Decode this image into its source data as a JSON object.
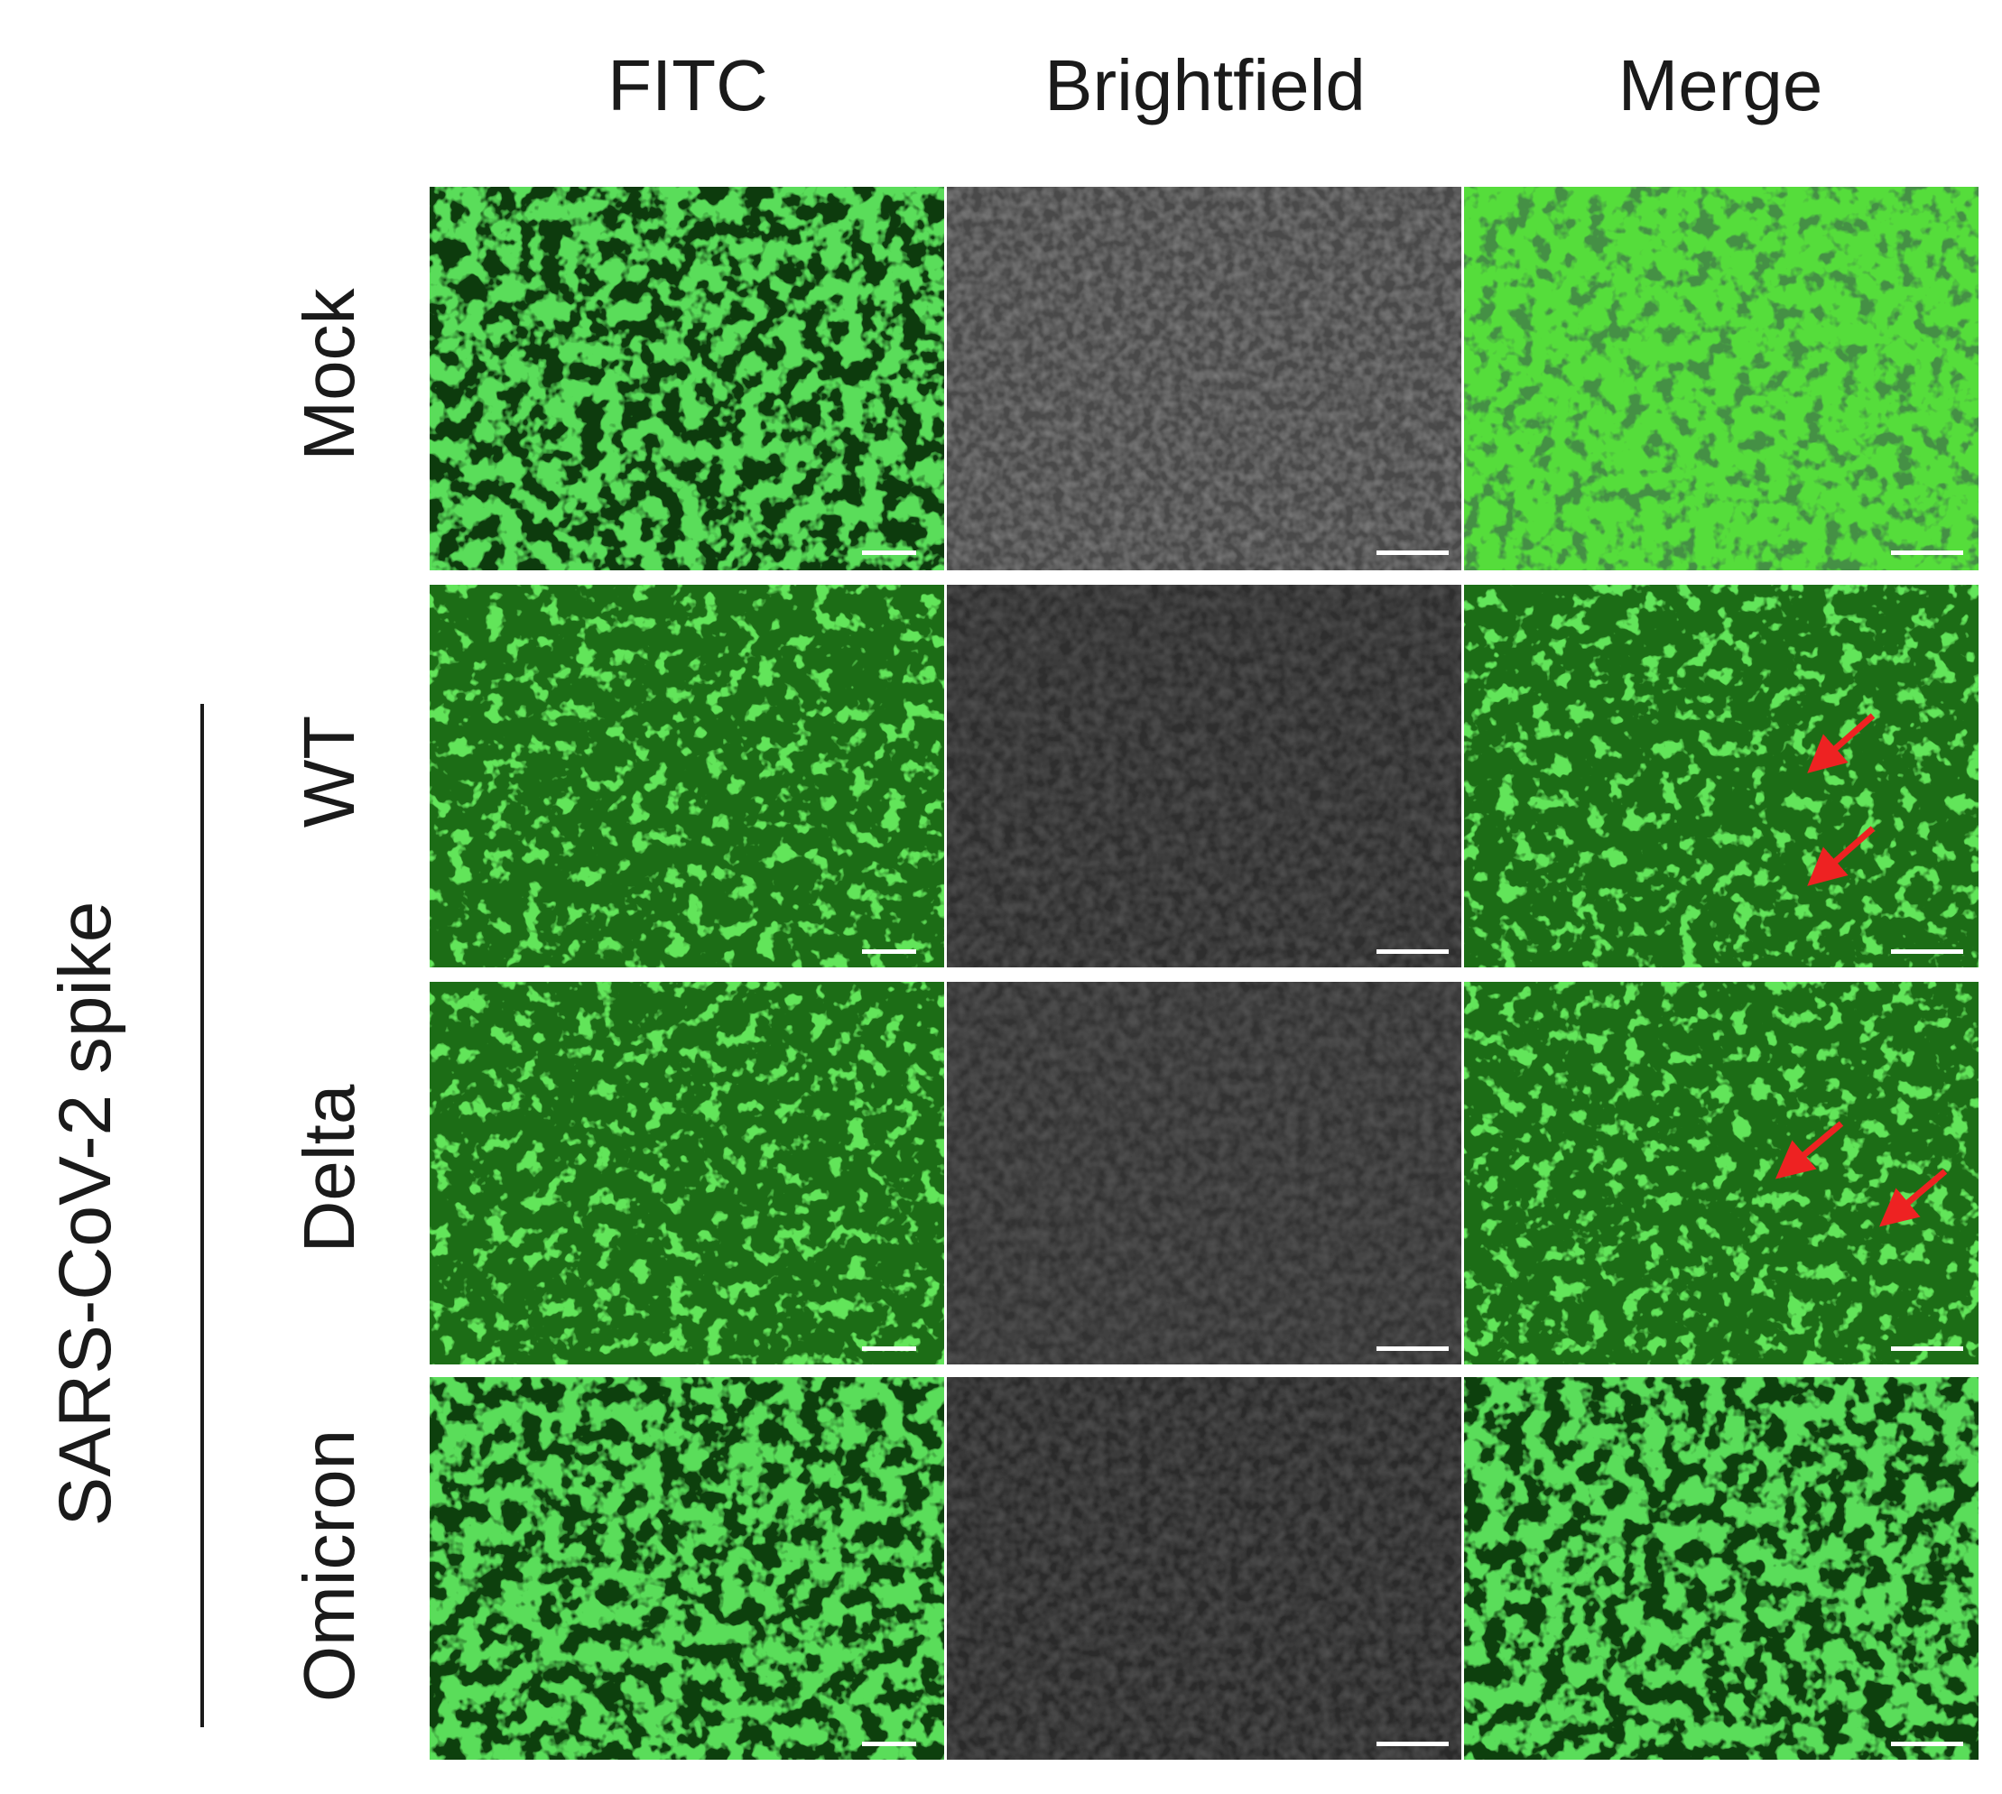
{
  "columns": [
    "FITC",
    "Brightfield",
    "Merge"
  ],
  "rows": [
    "Mock",
    "WT",
    "Delta",
    "Omicron"
  ],
  "group_label": "SARS-CoV-2 spike",
  "colors": {
    "fitc_bright": "#3dd62c",
    "fitc_dark": "#0d3a0c",
    "fitc_diffuse": "#1e7d19",
    "brightfield": "#2d2d2d",
    "brightfield_mock": "#4a4a4a",
    "arrow": "#ee2222",
    "scale_bar": "#ffffff"
  },
  "panels_with_arrows": {
    "WT": 2,
    "Delta": 2
  }
}
